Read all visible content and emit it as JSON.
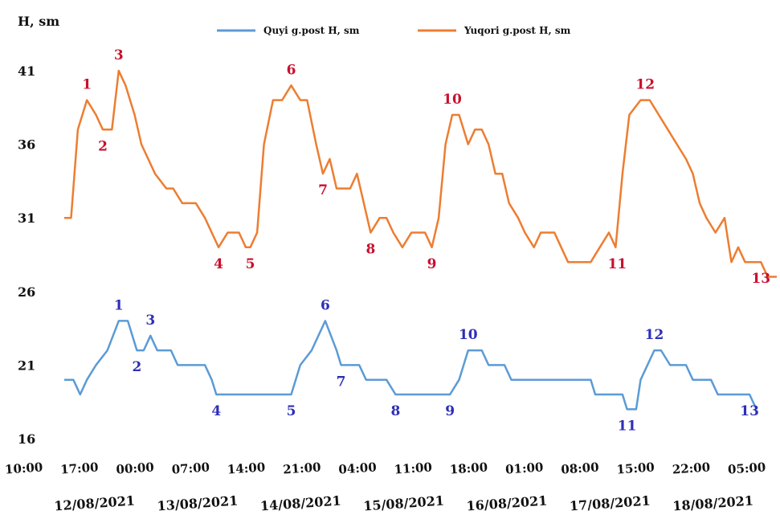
{
  "chart_data": {
    "type": "line",
    "ylabel": "H, sm",
    "yticks": [
      "41",
      "36",
      "31",
      "26",
      "21",
      "16"
    ],
    "ylim": [
      16,
      42
    ],
    "xticks": [
      "10:00",
      "17:00",
      "00:00",
      "07:00",
      "14:00",
      "21:00",
      "04:00",
      "11:00",
      "18:00",
      "01:00",
      "08:00",
      "15:00",
      "22:00",
      "05:00"
    ],
    "dates": [
      "12/08/2021",
      "13/08/2021",
      "14/08/2021",
      "15/08/2021",
      "16/08/2021",
      "17/08/2021",
      "18/08/2021"
    ],
    "legend": {
      "placement": "top"
    },
    "series": [
      {
        "name": "Quyi g.post H, sm",
        "color": "#5b9bd5",
        "annotation_color": "#2e2eb8",
        "points": [
          [
            0,
            20
          ],
          [
            4,
            20
          ],
          [
            7,
            19
          ],
          [
            10,
            20
          ],
          [
            14,
            21
          ],
          [
            19,
            22
          ],
          [
            24,
            24
          ],
          [
            28,
            24
          ],
          [
            32,
            22
          ],
          [
            35,
            22
          ],
          [
            38,
            23
          ],
          [
            41,
            22
          ],
          [
            47,
            22
          ],
          [
            50,
            21
          ],
          [
            62,
            21
          ],
          [
            65,
            20
          ],
          [
            67,
            19
          ],
          [
            100,
            19
          ],
          [
            104,
            21
          ],
          [
            109,
            22
          ],
          [
            115,
            24
          ],
          [
            120,
            22
          ],
          [
            122,
            21
          ],
          [
            130,
            21
          ],
          [
            133,
            20
          ],
          [
            142,
            20
          ],
          [
            146,
            19
          ],
          [
            170,
            19
          ],
          [
            174,
            20
          ],
          [
            178,
            22
          ],
          [
            184,
            22
          ],
          [
            187,
            21
          ],
          [
            194,
            21
          ],
          [
            197,
            20
          ],
          [
            232,
            20
          ],
          [
            234,
            19
          ],
          [
            246,
            19
          ],
          [
            248,
            18
          ],
          [
            252,
            18
          ],
          [
            254,
            20
          ],
          [
            260,
            22
          ],
          [
            263,
            22
          ],
          [
            267,
            21
          ],
          [
            274,
            21
          ],
          [
            277,
            20
          ],
          [
            285,
            20
          ],
          [
            288,
            19
          ],
          [
            302,
            19
          ],
          [
            305,
            18
          ]
        ],
        "annotations": [
          {
            "label": "1",
            "t": 24,
            "value": 24,
            "pos": "above"
          },
          {
            "label": "2",
            "t": 32,
            "value": 22,
            "pos": "below"
          },
          {
            "label": "3",
            "t": 38,
            "value": 23,
            "pos": "above"
          },
          {
            "label": "4",
            "t": 67,
            "value": 19,
            "pos": "below"
          },
          {
            "label": "5",
            "t": 100,
            "value": 19,
            "pos": "below"
          },
          {
            "label": "6",
            "t": 115,
            "value": 24,
            "pos": "above"
          },
          {
            "label": "7",
            "t": 122,
            "value": 21,
            "pos": "below"
          },
          {
            "label": "8",
            "t": 146,
            "value": 19,
            "pos": "below"
          },
          {
            "label": "9",
            "t": 170,
            "value": 19,
            "pos": "below"
          },
          {
            "label": "10",
            "t": 178,
            "value": 22,
            "pos": "above"
          },
          {
            "label": "11",
            "t": 248,
            "value": 18,
            "pos": "below"
          },
          {
            "label": "12",
            "t": 260,
            "value": 22,
            "pos": "above"
          },
          {
            "label": "13",
            "t": 302,
            "value": 19,
            "pos": "below"
          }
        ]
      },
      {
        "name": "Yuqori g.post H, sm",
        "color": "#ed7d31",
        "annotation_color": "#c8102e",
        "points": [
          [
            0,
            31
          ],
          [
            3,
            31
          ],
          [
            6,
            37
          ],
          [
            10,
            39
          ],
          [
            14,
            38
          ],
          [
            17,
            37
          ],
          [
            21,
            37
          ],
          [
            24,
            41
          ],
          [
            27,
            40
          ],
          [
            31,
            38
          ],
          [
            34,
            36
          ],
          [
            37,
            35
          ],
          [
            40,
            34
          ],
          [
            45,
            33
          ],
          [
            48,
            33
          ],
          [
            52,
            32
          ],
          [
            58,
            32
          ],
          [
            62,
            31
          ],
          [
            65,
            30
          ],
          [
            68,
            29
          ],
          [
            72,
            30
          ],
          [
            77,
            30
          ],
          [
            80,
            29
          ],
          [
            82,
            29
          ],
          [
            85,
            30
          ],
          [
            88,
            36
          ],
          [
            92,
            39
          ],
          [
            96,
            39
          ],
          [
            100,
            40
          ],
          [
            104,
            39
          ],
          [
            107,
            39
          ],
          [
            111,
            36
          ],
          [
            114,
            34
          ],
          [
            117,
            35
          ],
          [
            120,
            33
          ],
          [
            126,
            33
          ],
          [
            129,
            34
          ],
          [
            132,
            32
          ],
          [
            135,
            30
          ],
          [
            139,
            31
          ],
          [
            142,
            31
          ],
          [
            145,
            30
          ],
          [
            149,
            29
          ],
          [
            153,
            30
          ],
          [
            159,
            30
          ],
          [
            162,
            29
          ],
          [
            165,
            31
          ],
          [
            168,
            36
          ],
          [
            171,
            38
          ],
          [
            174,
            38
          ],
          [
            178,
            36
          ],
          [
            181,
            37
          ],
          [
            184,
            37
          ],
          [
            187,
            36
          ],
          [
            190,
            34
          ],
          [
            193,
            34
          ],
          [
            196,
            32
          ],
          [
            200,
            31
          ],
          [
            203,
            30
          ],
          [
            207,
            29
          ],
          [
            210,
            30
          ],
          [
            216,
            30
          ],
          [
            219,
            29
          ],
          [
            222,
            28
          ],
          [
            232,
            28
          ],
          [
            236,
            29
          ],
          [
            240,
            30
          ],
          [
            243,
            29
          ],
          [
            246,
            34
          ],
          [
            249,
            38
          ],
          [
            254,
            39
          ],
          [
            258,
            39
          ],
          [
            262,
            38
          ],
          [
            266,
            37
          ],
          [
            270,
            36
          ],
          [
            274,
            35
          ],
          [
            277,
            34
          ],
          [
            280,
            32
          ],
          [
            283,
            31
          ],
          [
            287,
            30
          ],
          [
            291,
            31
          ],
          [
            294,
            28
          ],
          [
            297,
            29
          ],
          [
            300,
            28
          ],
          [
            307,
            28
          ],
          [
            310,
            27
          ],
          [
            314,
            27
          ]
        ],
        "annotations": [
          {
            "label": "1",
            "t": 10,
            "value": 39,
            "pos": "above"
          },
          {
            "label": "2",
            "t": 17,
            "value": 37,
            "pos": "below"
          },
          {
            "label": "3",
            "t": 24,
            "value": 41,
            "pos": "above"
          },
          {
            "label": "4",
            "t": 68,
            "value": 29,
            "pos": "below"
          },
          {
            "label": "5",
            "t": 82,
            "value": 29,
            "pos": "below"
          },
          {
            "label": "6",
            "t": 100,
            "value": 40,
            "pos": "above"
          },
          {
            "label": "7",
            "t": 114,
            "value": 34,
            "pos": "below"
          },
          {
            "label": "8",
            "t": 135,
            "value": 30,
            "pos": "below"
          },
          {
            "label": "9",
            "t": 162,
            "value": 29,
            "pos": "below"
          },
          {
            "label": "10",
            "t": 171,
            "value": 38,
            "pos": "above"
          },
          {
            "label": "11",
            "t": 243,
            "value": 29,
            "pos": "below-right"
          },
          {
            "label": "12",
            "t": 256,
            "value": 39,
            "pos": "above"
          },
          {
            "label": "13",
            "t": 307,
            "value": 28,
            "pos": "below"
          }
        ]
      }
    ]
  }
}
